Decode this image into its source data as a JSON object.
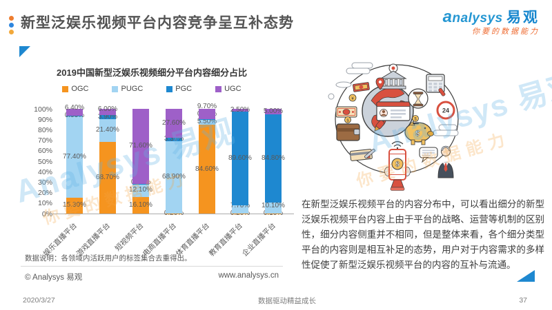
{
  "header": {
    "title": "新型泛娱乐视频平台内容竞争呈互补态势"
  },
  "logo": {
    "brand_en": "analysys",
    "brand_cn": "易观",
    "tagline": "你要的数据能力"
  },
  "watermark": {
    "brand": "Analysys 易观",
    "tagline": "你要的数据能力"
  },
  "chart_card": {
    "note": "数据说明：各领域内活跃用户的标签集合去重得出。",
    "copyright": "© Analysys 易观",
    "website": "www.analysys.cn"
  },
  "right_panel": {
    "paragraph": "在新型泛娱乐视频平台的内容分布中，可以看出细分的新型泛娱乐视频平台内容上由于平台的战略、运营等机制的区别性，细分内容侧重并不相同，但是整体来看，各个细分类型平台的内容则是相互补足的态势，用户对于内容需求的多样性促使了新型泛娱乐视频平台的内容的互补与流通。"
  },
  "footer": {
    "date": "2020/3/27",
    "slogan": "数据驱动精益成长",
    "page_number": "37"
  },
  "colors": {
    "ogc_orange": "#F5941F",
    "pugc_light_blue": "#A2D4F2",
    "pgc_blue": "#1E88D0",
    "ugc_purple": "#9E60C8",
    "accent_blue": "#1E88D0",
    "logo_blue": "#2496D2",
    "tagline_orange": "#EE6A30"
  },
  "chart_data": {
    "type": "bar",
    "stacked": true,
    "title": "2019中国新型泛娱乐视频细分平台内容细分占比",
    "categories": [
      "娱乐直播平台",
      "游戏直播平台",
      "短视频平台",
      "电商直播平台",
      "体育直播平台",
      "教育直播平台",
      "企业直播平台"
    ],
    "series": [
      {
        "name": "OGC",
        "color": "#F5941F",
        "values": [
          15.3,
          68.7,
          16.1,
          0.2,
          84.6,
          0.2,
          0.1
        ]
      },
      {
        "name": "PUGC",
        "color": "#A2D4F2",
        "values": [
          77.4,
          21.4,
          12.1,
          68.9,
          5.5,
          7.7,
          10.1
        ]
      },
      {
        "name": "PGC",
        "color": "#1E88D0",
        "values": [
          0.9,
          3.9,
          0.2,
          3.3,
          0.2,
          89.6,
          84.8
        ]
      },
      {
        "name": "UGC",
        "color": "#9E60C8",
        "values": [
          6.4,
          6.0,
          71.6,
          27.6,
          9.7,
          2.5,
          5.0
        ]
      }
    ],
    "xlabel": "",
    "ylabel": "",
    "ylim": [
      0,
      100
    ],
    "y_ticks": [
      "100%",
      "90%",
      "80%",
      "70%",
      "60%",
      "50%",
      "40%",
      "30%",
      "20%",
      "10%",
      "0%"
    ],
    "grid": false,
    "legend_position": "top",
    "value_label_format": "0.00%"
  }
}
